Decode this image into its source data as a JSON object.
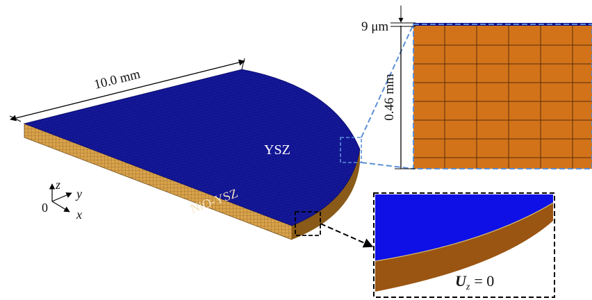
{
  "dimensions": {
    "length": "10.0 mm",
    "thickness": "0.46 mm",
    "coating": "9 μm"
  },
  "layers": {
    "top": "YSZ",
    "bottom": "NiO-YSZ"
  },
  "axes": {
    "origin": "0",
    "z": "z",
    "y": "y",
    "x": "x"
  },
  "boundary_condition": {
    "symbol": "U",
    "subscript": "z",
    "equation": "= 0"
  }
}
